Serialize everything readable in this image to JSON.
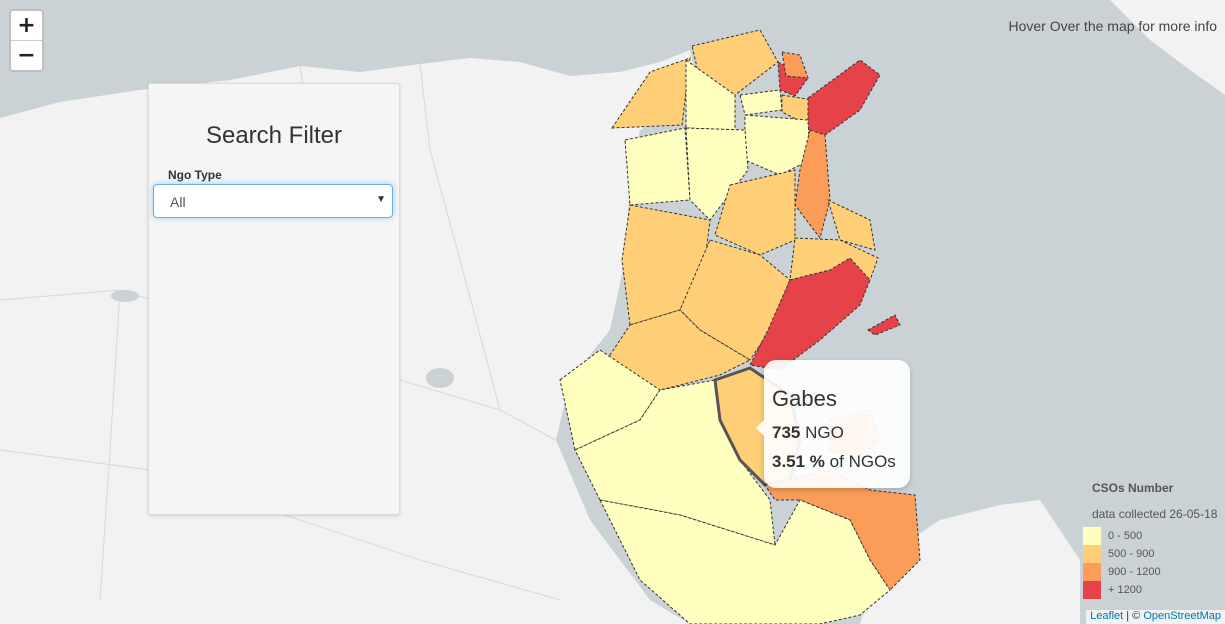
{
  "map": {
    "hint_text": "Hover Over the map for more info",
    "zoom_in_label": "+",
    "zoom_out_label": "−",
    "colors": {
      "sea": "#cbd2d6",
      "land": "#f2f2f2",
      "low": "#ffffc0",
      "mid": "#fecf76",
      "high": "#fb9d59",
      "top": "#e54349"
    }
  },
  "filter": {
    "title": "Search Filter",
    "ngo_type_label": "Ngo Type",
    "ngo_type_value": "All"
  },
  "tooltip": {
    "region": "Gabes",
    "ngo_count": "735",
    "ngo_suffix": "NGO",
    "percent": "3.51 %",
    "percent_suffix": "of NGOs"
  },
  "legend": {
    "title": "CSOs Number",
    "subtitle": "data collected 26-05-18",
    "items": [
      {
        "label": "0 - 500",
        "color": "#ffffc0"
      },
      {
        "label": "500 - 900",
        "color": "#fecf76"
      },
      {
        "label": "900 - 1200",
        "color": "#fb9d59"
      },
      {
        "label": "+ 1200",
        "color": "#e54349"
      }
    ]
  },
  "attribution": {
    "leaflet": "Leaflet",
    "separator": " | © ",
    "osm": "OpenStreetMap"
  }
}
